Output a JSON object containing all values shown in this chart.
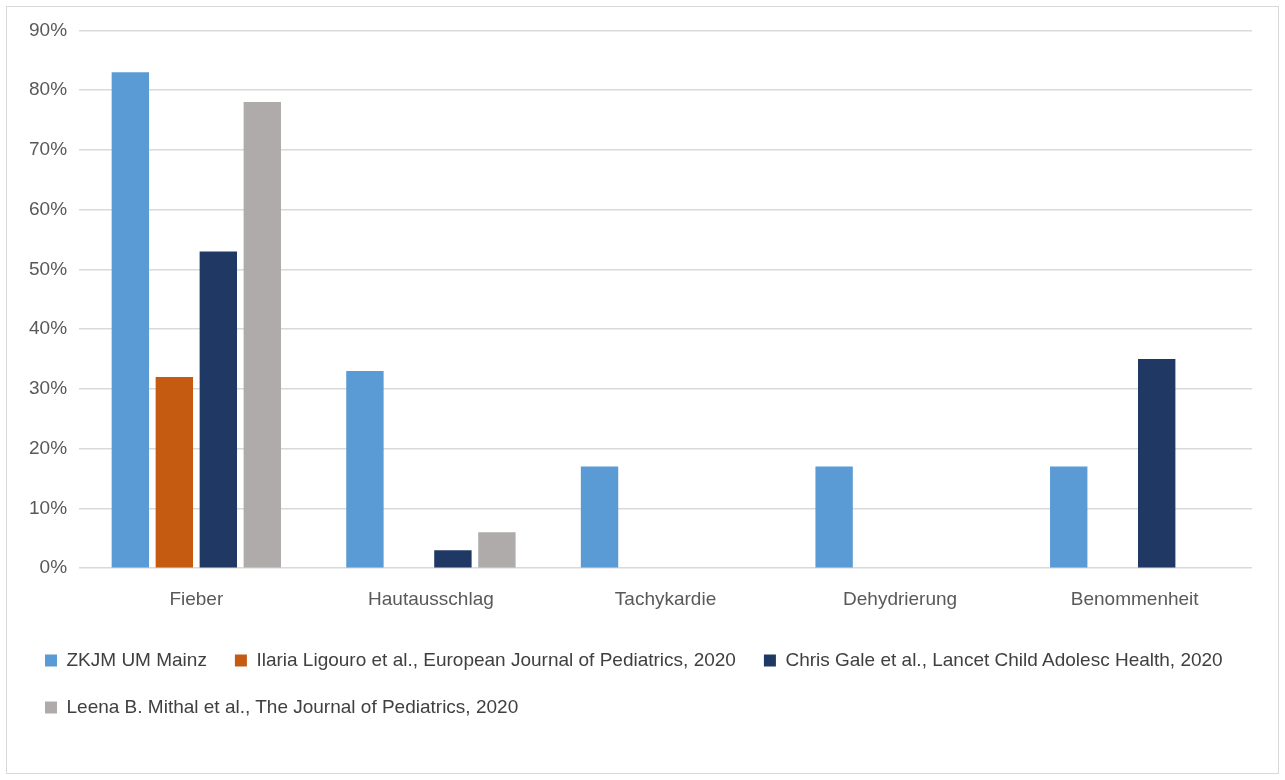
{
  "chart_data": {
    "type": "bar",
    "categories": [
      "Fieber",
      "Hautausschlag",
      "Tachykardie",
      "Dehydrierung",
      "Benommenheit"
    ],
    "series": [
      {
        "name": "ZKJM UM Mainz",
        "color": "#5b9bd5",
        "values": [
          83,
          33,
          17,
          17,
          17
        ]
      },
      {
        "name": "Ilaria Ligouro et al., European Journal of Pediatrics, 2020",
        "color": "#c55a11",
        "values": [
          32,
          null,
          null,
          null,
          null
        ]
      },
      {
        "name": "Chris Gale et al., Lancet Child Adolesc Health, 2020",
        "color": "#203864",
        "values": [
          53,
          3,
          null,
          null,
          35
        ]
      },
      {
        "name": "Leena B. Mithal et al., The Journal of Pediatrics, 2020",
        "color": "#afabab",
        "values": [
          78,
          6,
          null,
          null,
          null
        ]
      }
    ],
    "ylim": [
      0,
      90
    ],
    "yticks": [
      {
        "value": 0,
        "label": "0%"
      },
      {
        "value": 10,
        "label": "10%"
      },
      {
        "value": 20,
        "label": "20%"
      },
      {
        "value": 30,
        "label": "30%"
      },
      {
        "value": 40,
        "label": "40%"
      },
      {
        "value": 50,
        "label": "50%"
      },
      {
        "value": 60,
        "label": "60%"
      },
      {
        "value": 70,
        "label": "70%"
      },
      {
        "value": 80,
        "label": "80%"
      },
      {
        "value": 90,
        "label": "90%"
      }
    ],
    "grid": "y",
    "legend": "bottom"
  }
}
